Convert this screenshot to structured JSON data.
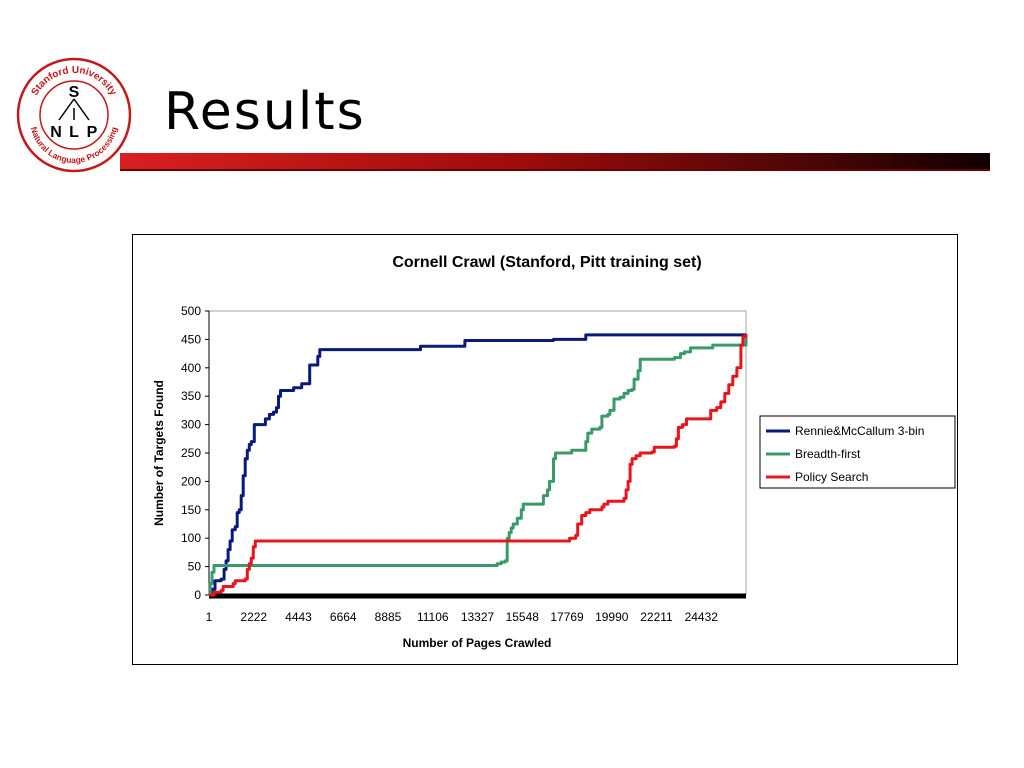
{
  "slide": {
    "title": "Results",
    "logo": {
      "top_text": "Stanford University",
      "bottom_text": "Natural Language Processing",
      "letters": [
        "S",
        "N",
        "L",
        "P"
      ]
    }
  },
  "chart_data": {
    "type": "line",
    "title": "Cornell Crawl (Stanford, Pitt training set)",
    "xlabel": "Number of Pages Crawled",
    "ylabel": "Number of Targets Found",
    "xlim": [
      1,
      26653
    ],
    "ylim": [
      0,
      500
    ],
    "y_ticks": [
      0,
      50,
      100,
      150,
      200,
      250,
      300,
      350,
      400,
      450,
      500
    ],
    "x_tick_labels": [
      "1",
      "2222",
      "4443",
      "6664",
      "8885",
      "11106",
      "13327",
      "15548",
      "17769",
      "19990",
      "22211",
      "24432"
    ],
    "x_tick_values": [
      1,
      2222,
      4443,
      6664,
      8885,
      11106,
      13327,
      15548,
      17769,
      19990,
      22211,
      24432
    ],
    "grid": false,
    "legend_position": "right",
    "series": [
      {
        "name": "Rennie&McCallum 3-bin",
        "color": "#0a1a7a",
        "points": [
          [
            1,
            0
          ],
          [
            150,
            10
          ],
          [
            300,
            25
          ],
          [
            600,
            28
          ],
          [
            750,
            45
          ],
          [
            850,
            60
          ],
          [
            950,
            80
          ],
          [
            1050,
            95
          ],
          [
            1150,
            115
          ],
          [
            1300,
            120
          ],
          [
            1400,
            145
          ],
          [
            1500,
            150
          ],
          [
            1600,
            175
          ],
          [
            1700,
            210
          ],
          [
            1800,
            240
          ],
          [
            1900,
            255
          ],
          [
            2000,
            265
          ],
          [
            2100,
            270
          ],
          [
            2250,
            300
          ],
          [
            2700,
            300
          ],
          [
            2800,
            310
          ],
          [
            3000,
            318
          ],
          [
            3200,
            322
          ],
          [
            3350,
            330
          ],
          [
            3450,
            350
          ],
          [
            3550,
            360
          ],
          [
            4000,
            360
          ],
          [
            4200,
            365
          ],
          [
            4600,
            372
          ],
          [
            4900,
            372
          ],
          [
            5000,
            405
          ],
          [
            5300,
            405
          ],
          [
            5400,
            420
          ],
          [
            5500,
            432
          ],
          [
            10400,
            432
          ],
          [
            10500,
            438
          ],
          [
            12600,
            438
          ],
          [
            12700,
            448
          ],
          [
            17000,
            448
          ],
          [
            17100,
            450
          ],
          [
            18600,
            450
          ],
          [
            18700,
            458
          ],
          [
            26653,
            458
          ]
        ]
      },
      {
        "name": "Breadth-first",
        "color": "#3a9a6a",
        "points": [
          [
            1,
            0
          ],
          [
            60,
            20
          ],
          [
            150,
            40
          ],
          [
            250,
            52
          ],
          [
            14200,
            52
          ],
          [
            14300,
            55
          ],
          [
            14500,
            58
          ],
          [
            14700,
            60
          ],
          [
            14800,
            100
          ],
          [
            14900,
            110
          ],
          [
            15000,
            118
          ],
          [
            15100,
            125
          ],
          [
            15300,
            135
          ],
          [
            15500,
            150
          ],
          [
            15600,
            160
          ],
          [
            16500,
            160
          ],
          [
            16600,
            175
          ],
          [
            16800,
            185
          ],
          [
            16900,
            200
          ],
          [
            17100,
            240
          ],
          [
            17200,
            250
          ],
          [
            17900,
            250
          ],
          [
            18000,
            255
          ],
          [
            18600,
            255
          ],
          [
            18700,
            270
          ],
          [
            18800,
            285
          ],
          [
            19000,
            292
          ],
          [
            19400,
            295
          ],
          [
            19500,
            315
          ],
          [
            19800,
            318
          ],
          [
            19900,
            325
          ],
          [
            20100,
            345
          ],
          [
            20400,
            348
          ],
          [
            20600,
            355
          ],
          [
            20800,
            360
          ],
          [
            21000,
            362
          ],
          [
            21100,
            380
          ],
          [
            21300,
            395
          ],
          [
            21400,
            415
          ],
          [
            23100,
            418
          ],
          [
            23400,
            425
          ],
          [
            23600,
            428
          ],
          [
            23900,
            435
          ],
          [
            24900,
            435
          ],
          [
            25000,
            440
          ],
          [
            26653,
            458
          ]
        ]
      },
      {
        "name": "Policy Search",
        "color": "#e8161a",
        "points": [
          [
            1,
            0
          ],
          [
            250,
            5
          ],
          [
            600,
            8
          ],
          [
            700,
            15
          ],
          [
            1200,
            20
          ],
          [
            1300,
            25
          ],
          [
            1800,
            28
          ],
          [
            1900,
            45
          ],
          [
            2000,
            55
          ],
          [
            2100,
            65
          ],
          [
            2200,
            85
          ],
          [
            2300,
            95
          ],
          [
            17800,
            95
          ],
          [
            17900,
            100
          ],
          [
            18200,
            105
          ],
          [
            18300,
            125
          ],
          [
            18500,
            140
          ],
          [
            18700,
            145
          ],
          [
            18900,
            150
          ],
          [
            19500,
            155
          ],
          [
            19600,
            160
          ],
          [
            19800,
            165
          ],
          [
            20600,
            170
          ],
          [
            20700,
            185
          ],
          [
            20800,
            200
          ],
          [
            20900,
            230
          ],
          [
            21000,
            240
          ],
          [
            21200,
            245
          ],
          [
            21400,
            250
          ],
          [
            22000,
            252
          ],
          [
            22100,
            260
          ],
          [
            23100,
            262
          ],
          [
            23200,
            275
          ],
          [
            23300,
            295
          ],
          [
            23500,
            300
          ],
          [
            23700,
            310
          ],
          [
            24800,
            310
          ],
          [
            24900,
            325
          ],
          [
            25200,
            330
          ],
          [
            25400,
            340
          ],
          [
            25600,
            355
          ],
          [
            25800,
            370
          ],
          [
            26000,
            385
          ],
          [
            26200,
            400
          ],
          [
            26400,
            440
          ],
          [
            26500,
            455
          ],
          [
            26653,
            460
          ]
        ]
      }
    ]
  }
}
